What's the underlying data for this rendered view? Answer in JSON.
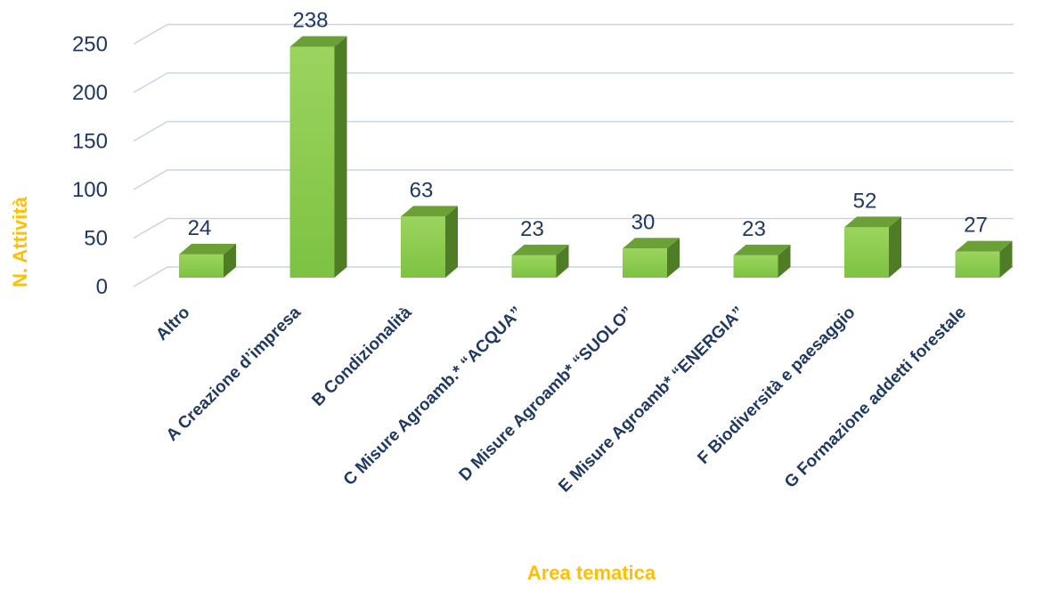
{
  "chart_data": {
    "type": "bar",
    "style": "3d-column",
    "xlabel": "Area tematica",
    "ylabel": "N. Attività",
    "ylim": [
      0,
      250
    ],
    "yticks": [
      0,
      50,
      100,
      150,
      200,
      250
    ],
    "grid": true,
    "legend": "none",
    "categories": [
      "Altro",
      "A  Creazione d’impresa",
      "B  Condizionalità",
      "C  Misure Agroamb.*  “ACQUA”",
      "D  Misure Agroamb*  “SUOLO”",
      "E  Misure Agroamb*  “ENERGIA”",
      "F  Biodiversità e paesaggio",
      "G  Formazione addetti forestale"
    ],
    "values": [
      24,
      238,
      63,
      23,
      30,
      23,
      52,
      27
    ],
    "colors": {
      "bar_front": "#7dc242",
      "bar_front_light": "#9bd45e",
      "bar_top": "#6aa035",
      "bar_side": "#4f7d26",
      "gridline": "#c9d3ea",
      "text": "#1f3864",
      "axis_title": "#ffc000"
    }
  }
}
